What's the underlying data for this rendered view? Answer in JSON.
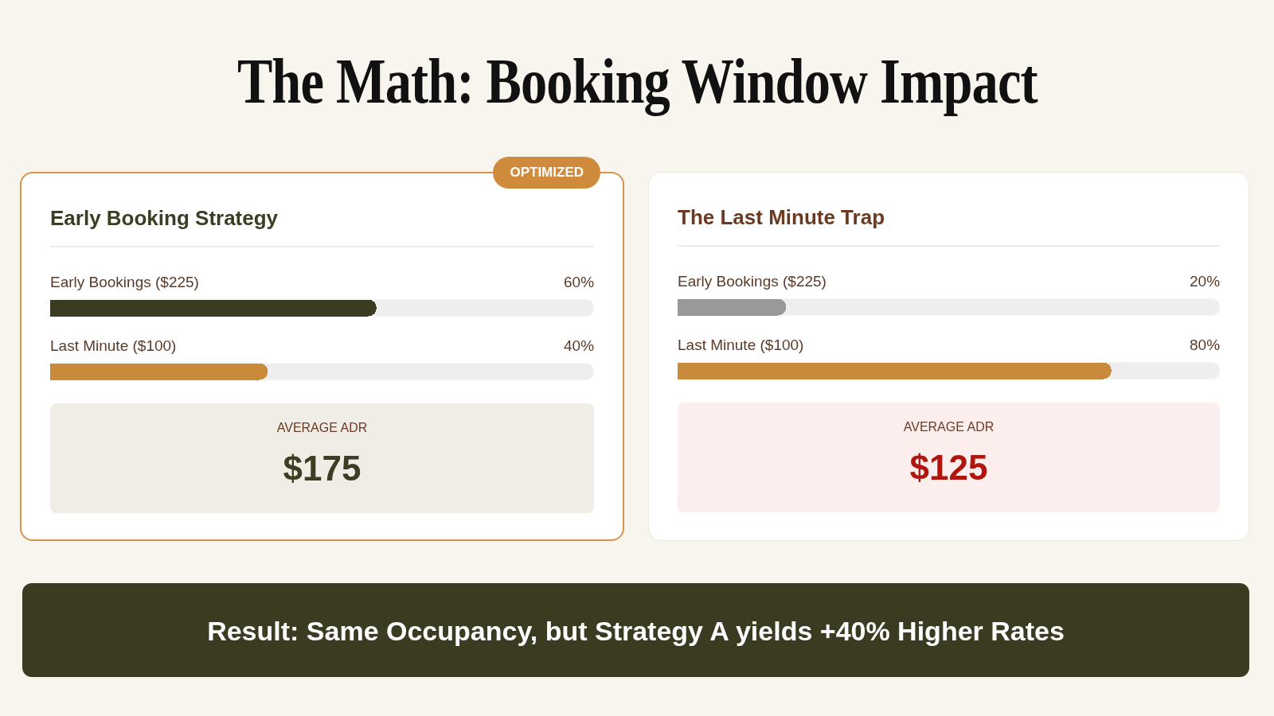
{
  "chart_data": [
    {
      "type": "other",
      "title": "The Math: Booking Window Impact"
    },
    {
      "type": "bar",
      "orientation": "horizontal",
      "title": "Early Booking Strategy",
      "categories": [
        "Early Bookings ($225)",
        "Last Minute ($100)"
      ],
      "values": [
        60,
        40
      ],
      "colors": [
        "#3b3b22",
        "#c98a3b"
      ],
      "value_labels": [
        "60%",
        "40%"
      ],
      "xlim": [
        0,
        100
      ],
      "annotations": [
        "OPTIMIZED",
        "AVERAGE ADR",
        "$175"
      ]
    },
    {
      "type": "bar",
      "orientation": "horizontal",
      "title": "The Last Minute Trap",
      "categories": [
        "Early Bookings ($225)",
        "Last Minute ($100)"
      ],
      "values": [
        20,
        80
      ],
      "colors": [
        "#999999",
        "#c98a3b"
      ],
      "value_labels": [
        "20%",
        "80%"
      ],
      "xlim": [
        0,
        100
      ],
      "annotations": [
        "AVERAGE ADR",
        "$125"
      ]
    },
    {
      "type": "other",
      "annotations": [
        "Result: Same Occupancy, but Strategy A yields +40% Higher Rates"
      ]
    }
  ]
}
